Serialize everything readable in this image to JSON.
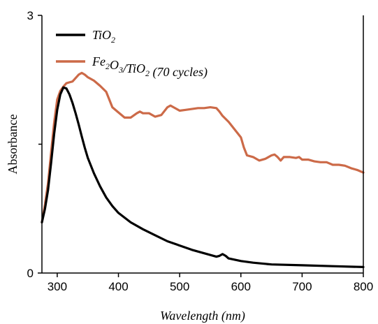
{
  "chart_data": {
    "type": "line",
    "title": "",
    "xlabel": "Wavelength (nm)",
    "ylabel": "Absorbance",
    "xlim": [
      275,
      800
    ],
    "ylim": [
      0,
      3
    ],
    "x_ticks": [
      300,
      400,
      500,
      600,
      700,
      800
    ],
    "y_ticks": [
      0,
      3
    ],
    "y_minor_ticks": [
      1.5
    ],
    "grid": false,
    "legend_position": "top-left",
    "series": [
      {
        "name": "TiO2",
        "legend_base": "TiO",
        "legend_sub": "2",
        "color": "#000000",
        "points": [
          [
            275,
            0.59
          ],
          [
            280,
            0.75
          ],
          [
            285,
            0.97
          ],
          [
            290,
            1.28
          ],
          [
            295,
            1.62
          ],
          [
            300,
            1.9
          ],
          [
            305,
            2.08
          ],
          [
            310,
            2.16
          ],
          [
            315,
            2.15
          ],
          [
            320,
            2.08
          ],
          [
            325,
            1.98
          ],
          [
            330,
            1.86
          ],
          [
            335,
            1.73
          ],
          [
            340,
            1.59
          ],
          [
            345,
            1.46
          ],
          [
            350,
            1.34
          ],
          [
            360,
            1.16
          ],
          [
            370,
            1.01
          ],
          [
            380,
            0.88
          ],
          [
            390,
            0.78
          ],
          [
            400,
            0.7
          ],
          [
            420,
            0.59
          ],
          [
            440,
            0.51
          ],
          [
            460,
            0.44
          ],
          [
            480,
            0.37
          ],
          [
            500,
            0.32
          ],
          [
            520,
            0.27
          ],
          [
            540,
            0.23
          ],
          [
            560,
            0.19
          ],
          [
            565,
            0.2
          ],
          [
            570,
            0.22
          ],
          [
            575,
            0.2
          ],
          [
            580,
            0.17
          ],
          [
            600,
            0.14
          ],
          [
            620,
            0.12
          ],
          [
            650,
            0.1
          ],
          [
            700,
            0.09
          ],
          [
            750,
            0.08
          ],
          [
            800,
            0.07
          ]
        ]
      },
      {
        "name": "Fe2O3/TiO2 (70 cycles)",
        "legend_parts": [
          {
            "t": "Fe",
            "sub": false
          },
          {
            "t": "2",
            "sub": true
          },
          {
            "t": "O",
            "sub": false
          },
          {
            "t": "3",
            "sub": true
          },
          {
            "t": "/TiO",
            "sub": false
          },
          {
            "t": "2",
            "sub": true
          },
          {
            "t": " (70 cycles)",
            "sub": false
          }
        ],
        "color": "#cc6a48",
        "points": [
          [
            275,
            0.59
          ],
          [
            280,
            0.8
          ],
          [
            285,
            1.05
          ],
          [
            290,
            1.4
          ],
          [
            295,
            1.75
          ],
          [
            300,
            2.02
          ],
          [
            305,
            2.12
          ],
          [
            310,
            2.17
          ],
          [
            315,
            2.21
          ],
          [
            320,
            2.22
          ],
          [
            325,
            2.23
          ],
          [
            330,
            2.27
          ],
          [
            335,
            2.31
          ],
          [
            340,
            2.33
          ],
          [
            345,
            2.31
          ],
          [
            350,
            2.28
          ],
          [
            360,
            2.24
          ],
          [
            370,
            2.18
          ],
          [
            380,
            2.11
          ],
          [
            385,
            2.02
          ],
          [
            390,
            1.93
          ],
          [
            400,
            1.87
          ],
          [
            410,
            1.81
          ],
          [
            420,
            1.81
          ],
          [
            430,
            1.86
          ],
          [
            435,
            1.88
          ],
          [
            440,
            1.86
          ],
          [
            450,
            1.86
          ],
          [
            460,
            1.82
          ],
          [
            470,
            1.84
          ],
          [
            480,
            1.93
          ],
          [
            485,
            1.95
          ],
          [
            490,
            1.93
          ],
          [
            500,
            1.89
          ],
          [
            510,
            1.9
          ],
          [
            520,
            1.91
          ],
          [
            530,
            1.92
          ],
          [
            540,
            1.92
          ],
          [
            550,
            1.93
          ],
          [
            560,
            1.92
          ],
          [
            565,
            1.88
          ],
          [
            570,
            1.83
          ],
          [
            580,
            1.76
          ],
          [
            590,
            1.67
          ],
          [
            600,
            1.58
          ],
          [
            605,
            1.46
          ],
          [
            610,
            1.37
          ],
          [
            620,
            1.35
          ],
          [
            630,
            1.31
          ],
          [
            640,
            1.33
          ],
          [
            650,
            1.37
          ],
          [
            655,
            1.38
          ],
          [
            660,
            1.35
          ],
          [
            665,
            1.31
          ],
          [
            670,
            1.35
          ],
          [
            680,
            1.35
          ],
          [
            690,
            1.34
          ],
          [
            695,
            1.35
          ],
          [
            700,
            1.32
          ],
          [
            710,
            1.32
          ],
          [
            720,
            1.3
          ],
          [
            730,
            1.29
          ],
          [
            740,
            1.29
          ],
          [
            750,
            1.26
          ],
          [
            760,
            1.26
          ],
          [
            770,
            1.25
          ],
          [
            780,
            1.22
          ],
          [
            790,
            1.2
          ],
          [
            800,
            1.17
          ]
        ]
      }
    ]
  }
}
